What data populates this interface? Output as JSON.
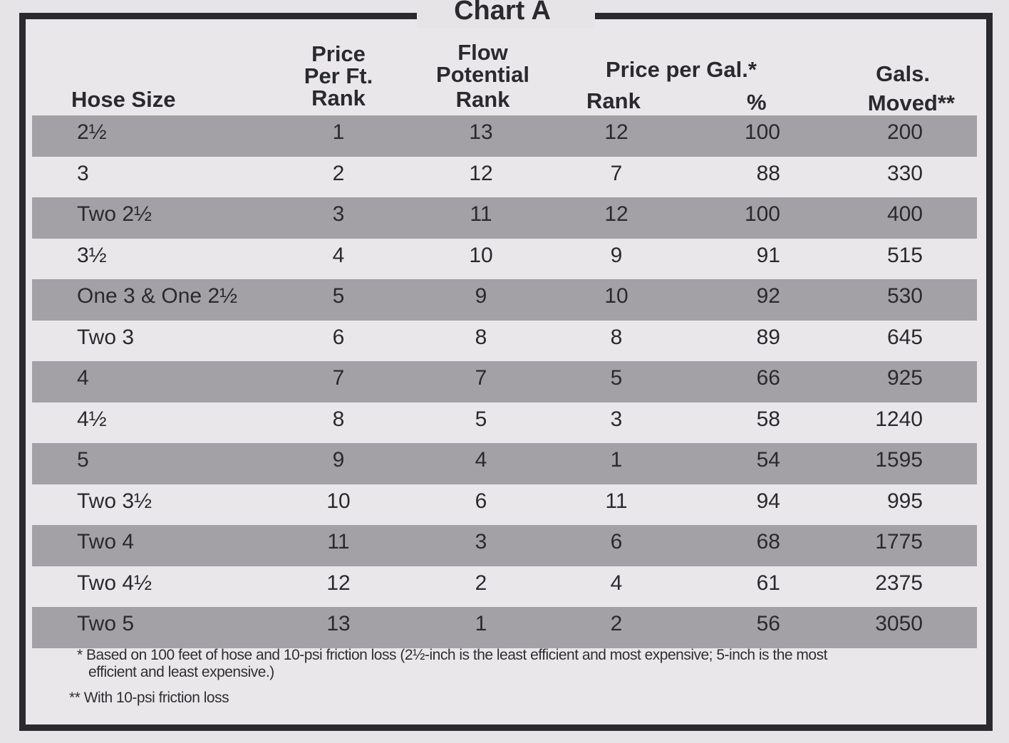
{
  "title": "Chart A",
  "headers": {
    "hose_size": "Hose Size",
    "price_per_ft": [
      "Price",
      "Per Ft.",
      "Rank"
    ],
    "flow_potential": [
      "Flow",
      "Potential",
      "Rank"
    ],
    "price_per_gal": "Price per Gal.*",
    "rank": "Rank",
    "percent": "%",
    "gals_moved": [
      "Gals.",
      "Moved**"
    ]
  },
  "rows": [
    {
      "size": "2½",
      "price_rank": "1",
      "flow_rank": "13",
      "gal_rank": "12",
      "pct": "100",
      "gals": "200"
    },
    {
      "size": "3",
      "price_rank": "2",
      "flow_rank": "12",
      "gal_rank": "7",
      "pct": "88",
      "gals": "330"
    },
    {
      "size": "Two 2½",
      "price_rank": "3",
      "flow_rank": "11",
      "gal_rank": "12",
      "pct": "100",
      "gals": "400"
    },
    {
      "size": "3½",
      "price_rank": "4",
      "flow_rank": "10",
      "gal_rank": "9",
      "pct": "91",
      "gals": "515"
    },
    {
      "size": "One 3 & One 2½",
      "price_rank": "5",
      "flow_rank": "9",
      "gal_rank": "10",
      "pct": "92",
      "gals": "530"
    },
    {
      "size": "Two 3",
      "price_rank": "6",
      "flow_rank": "8",
      "gal_rank": "8",
      "pct": "89",
      "gals": "645"
    },
    {
      "size": "4",
      "price_rank": "7",
      "flow_rank": "7",
      "gal_rank": "5",
      "pct": "66",
      "gals": "925"
    },
    {
      "size": "4½",
      "price_rank": "8",
      "flow_rank": "5",
      "gal_rank": "3",
      "pct": "58",
      "gals": "1240"
    },
    {
      "size": "5",
      "price_rank": "9",
      "flow_rank": "4",
      "gal_rank": "1",
      "pct": "54",
      "gals": "1595"
    },
    {
      "size": "Two 3½",
      "price_rank": "10",
      "flow_rank": "6",
      "gal_rank": "11",
      "pct": "94",
      "gals": "995"
    },
    {
      "size": "Two 4",
      "price_rank": "11",
      "flow_rank": "3",
      "gal_rank": "6",
      "pct": "68",
      "gals": "1775"
    },
    {
      "size": "Two 4½",
      "price_rank": "12",
      "flow_rank": "2",
      "gal_rank": "4",
      "pct": "61",
      "gals": "2375"
    },
    {
      "size": "Two 5",
      "price_rank": "13",
      "flow_rank": "1",
      "gal_rank": "2",
      "pct": "56",
      "gals": "3050"
    }
  ],
  "footnotes": {
    "note1_marker": "*",
    "note1_line1": "Based on 100 feet of hose and 10-psi friction loss (2½-inch is the least efficient and most expensive; 5-inch is the most",
    "note1_line2": "efficient and least expensive.)",
    "note2_marker": "**",
    "note2": "With 10-psi friction loss"
  },
  "colors": {
    "shade_row": "#a3a1a5",
    "light_row": "#e9e7e9",
    "ink": "#2a2a2e"
  }
}
